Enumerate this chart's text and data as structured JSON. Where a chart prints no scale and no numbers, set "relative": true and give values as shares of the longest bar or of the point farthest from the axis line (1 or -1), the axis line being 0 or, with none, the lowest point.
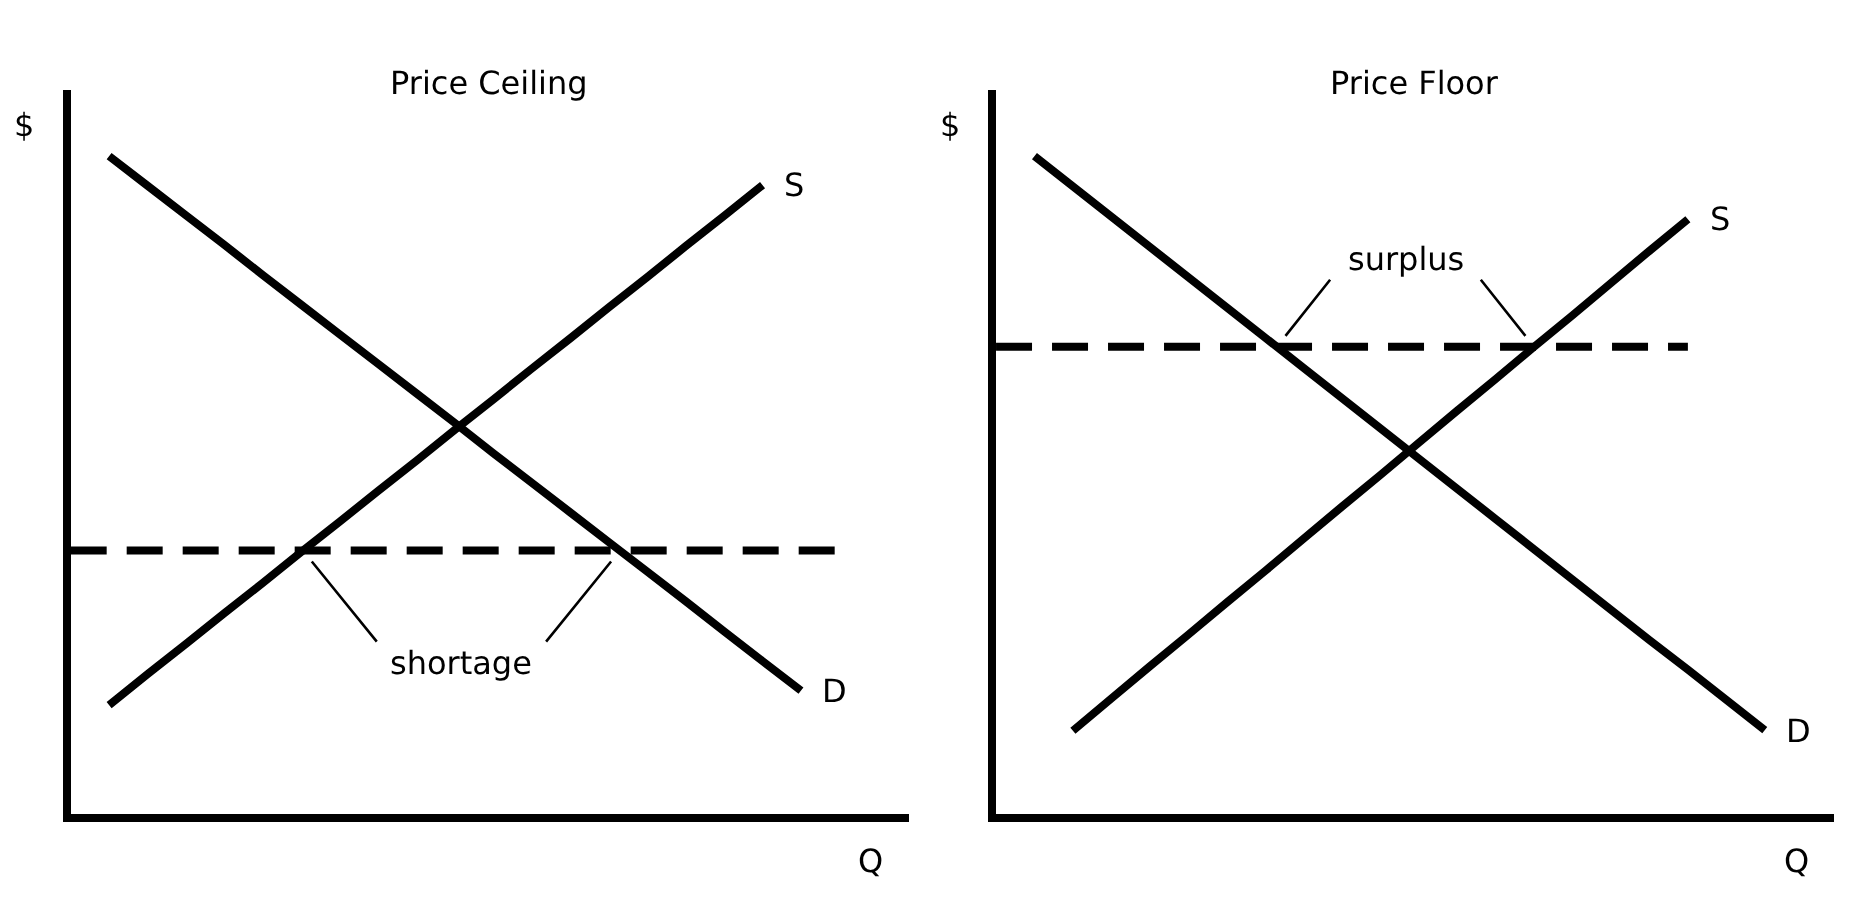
{
  "chart_data": [
    {
      "type": "line",
      "title": "Price Ceiling",
      "xlabel": "Q",
      "ylabel": "$",
      "relative": true,
      "categories": [
        null,
        null,
        null,
        null,
        null,
        null,
        null,
        null,
        null,
        null,
        null,
        null,
        null,
        null,
        null,
        null,
        null,
        null,
        null,
        null,
        null
      ],
      "series": [
        {
          "name": "S",
          "color": "#000000",
          "values": [
            null,
            0.165,
            0.212,
            0.258,
            0.305,
            0.351,
            0.398,
            0.444,
            0.491,
            0.537,
            0.584,
            0.63,
            0.677,
            0.723,
            0.77,
            0.816,
            0.863,
            0.909,
            0.956,
            null,
            null
          ]
        },
        {
          "name": "D",
          "color": "#000000",
          "values": [
            null,
            1,
            0.955,
            0.91,
            0.865,
            0.819,
            0.774,
            0.729,
            0.684,
            0.639,
            0.594,
            0.548,
            0.503,
            0.458,
            0.413,
            0.368,
            0.323,
            0.277,
            0.232,
            0.187,
            null
          ]
        },
        {
          "color": "#000000",
          "line_style": "dashed",
          "values": [
            0.4,
            0.4,
            0.4,
            0.4,
            0.4,
            0.4,
            0.4,
            0.4,
            0.4,
            0.4,
            0.4,
            0.4,
            0.4,
            0.4,
            0.4,
            0.4,
            0.4,
            0.4,
            0.4,
            0.4,
            0.4
          ]
        }
      ],
      "annotations": [
        {
          "text": "shortage",
          "y": 0.4
        }
      ]
    },
    {
      "type": "line",
      "title": "Price Floor",
      "xlabel": "Q",
      "ylabel": "$",
      "relative": true,
      "categories": [
        null,
        null,
        null,
        null,
        null,
        null,
        null,
        null,
        null,
        null,
        null,
        null,
        null,
        null,
        null,
        null,
        null,
        null,
        null,
        null,
        null
      ],
      "series": [
        {
          "name": "S",
          "color": "#000000",
          "values": [
            null,
            null,
            0.126,
            0.175,
            0.224,
            0.272,
            0.321,
            0.369,
            0.418,
            0.467,
            0.515,
            0.564,
            0.613,
            0.661,
            0.71,
            0.758,
            0.807,
            0.856,
            0.904,
            null,
            null
          ]
        },
        {
          "name": "D",
          "color": "#000000",
          "values": [
            null,
            1,
            0.954,
            0.908,
            0.862,
            0.816,
            0.77,
            0.724,
            0.678,
            0.632,
            0.586,
            0.54,
            0.494,
            0.448,
            0.402,
            0.356,
            0.31,
            0.264,
            0.219,
            0.173,
            0.127
          ]
        },
        {
          "color": "#000000",
          "line_style": "dashed",
          "values": [
            0.71,
            0.71,
            0.71,
            0.71,
            0.71,
            0.71,
            0.71,
            0.71,
            0.71,
            0.71,
            0.71,
            0.71,
            0.71,
            0.71,
            0.71,
            0.71,
            0.71,
            0.71,
            0.71,
            null,
            null
          ]
        }
      ],
      "annotations": [
        {
          "text": "surplus",
          "y": 0.71
        }
      ]
    }
  ]
}
